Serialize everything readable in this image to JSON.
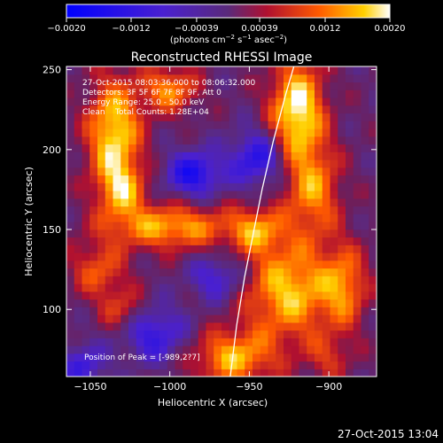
{
  "chart_data": {
    "type": "heatmap",
    "title": "Reconstructed RHESSI Image",
    "xlabel": "Heliocentric X (arcsec)",
    "ylabel": "Heliocentric Y (arcsec)",
    "xlim": [
      -1065,
      -870
    ],
    "ylim": [
      58,
      252
    ],
    "xticks": [
      -1050,
      -1000,
      -950,
      -900
    ],
    "yticks": [
      100,
      150,
      200,
      250
    ],
    "xtick_labels": [
      "−1050",
      "−1000",
      "−950",
      "−900"
    ],
    "ytick_labels": [
      "100",
      "150",
      "200",
      "250"
    ],
    "colorbar": {
      "min": -0.002,
      "max": 0.002,
      "ticks": [
        -0.002,
        -0.0012,
        -0.00039,
        0.00039,
        0.0012,
        0.002
      ],
      "tick_labels": [
        "−0.0020",
        "−0.0012",
        "−0.00039",
        "0.00039",
        "0.0012",
        "0.0020"
      ],
      "units_main": "(photons cm",
      "units_sup1": "−2",
      "units_mid": " s",
      "units_sup2": "−1",
      "units_mid2": " asec",
      "units_sup3": "−2",
      "units_end": ")"
    },
    "info_lines": [
      "27-Oct-2015 08:03:36.000 to 08:06:32.000",
      "Detectors: 3F 5F 6F 7F 8F 9F, Att 0",
      "Energy Range: 25.0 - 50.0 keV",
      "Clean    Total Counts: 1.28E+04"
    ],
    "peak_label": "Position of Peak = [-989,2?7]",
    "timestamp": "27-Oct-2015 13:04",
    "limb_curve": [
      [
        -962,
        58
      ],
      [
        -958,
        90
      ],
      [
        -953,
        120
      ],
      [
        -947,
        150
      ],
      [
        -942,
        175
      ],
      [
        -935,
        205
      ],
      [
        -927,
        235
      ],
      [
        -922,
        252
      ]
    ],
    "blobs": [
      {
        "x": -1035,
        "y": 210,
        "sx": 12,
        "sy": 25,
        "amp": 1.1
      },
      {
        "x": -1030,
        "y": 175,
        "sx": 10,
        "sy": 12,
        "amp": 0.7
      },
      {
        "x": -1000,
        "y": 238,
        "sx": 12,
        "sy": 10,
        "amp": 0.8
      },
      {
        "x": -920,
        "y": 225,
        "sx": 12,
        "sy": 22,
        "amp": 1.2
      },
      {
        "x": -910,
        "y": 175,
        "sx": 12,
        "sy": 20,
        "amp": 0.8
      },
      {
        "x": -1000,
        "y": 152,
        "sx": 28,
        "sy": 10,
        "amp": 0.9
      },
      {
        "x": -1045,
        "y": 125,
        "sx": 12,
        "sy": 12,
        "amp": 0.6
      },
      {
        "x": -1030,
        "y": 100,
        "sx": 10,
        "sy": 10,
        "amp": 0.5
      },
      {
        "x": -945,
        "y": 150,
        "sx": 12,
        "sy": 10,
        "amp": 0.7
      },
      {
        "x": -925,
        "y": 112,
        "sx": 20,
        "sy": 22,
        "amp": 1.0
      },
      {
        "x": -890,
        "y": 115,
        "sx": 10,
        "sy": 18,
        "amp": 0.7
      },
      {
        "x": -960,
        "y": 70,
        "sx": 18,
        "sy": 12,
        "amp": 0.9
      },
      {
        "x": -900,
        "y": 70,
        "sx": 10,
        "sy": 10,
        "amp": 0.4
      },
      {
        "x": -985,
        "y": 185,
        "sx": 12,
        "sy": 10,
        "amp": -0.9
      },
      {
        "x": -945,
        "y": 195,
        "sx": 12,
        "sy": 12,
        "amp": -0.8
      },
      {
        "x": -1010,
        "y": 85,
        "sx": 14,
        "sy": 12,
        "amp": -0.7
      },
      {
        "x": -970,
        "y": 120,
        "sx": 12,
        "sy": 10,
        "amp": -0.6
      },
      {
        "x": -1055,
        "y": 65,
        "sx": 10,
        "sy": 10,
        "amp": -0.6
      }
    ]
  }
}
